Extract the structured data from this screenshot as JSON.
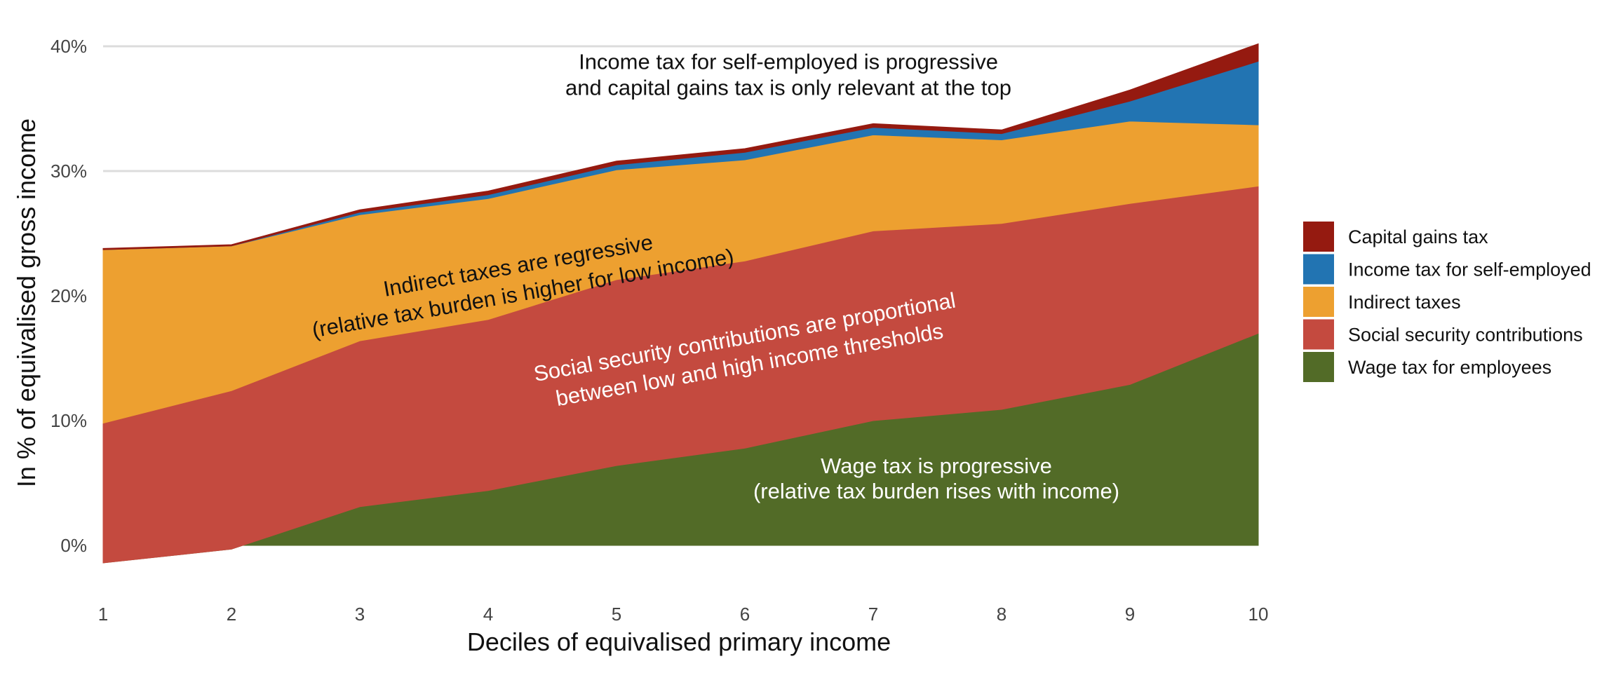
{
  "chart_data": {
    "type": "area",
    "stacked": true,
    "xlabel": "Deciles of equivalised primary income",
    "ylabel": "In % of equivalised gross income",
    "x": [
      1,
      2,
      3,
      4,
      5,
      6,
      7,
      8,
      9,
      10
    ],
    "ylim": [
      -2,
      40
    ],
    "yticks": [
      "0%",
      "10%",
      "20%",
      "30%",
      "40%"
    ],
    "ytick_values": [
      0,
      10,
      20,
      30,
      40
    ],
    "grid": true,
    "legend_position": "right",
    "series": [
      {
        "name": "Wage tax for employees",
        "color": "#526b27",
        "values": [
          -1.4,
          -0.3,
          3.1,
          4.4,
          6.4,
          7.8,
          10.0,
          10.9,
          12.9,
          17.0
        ]
      },
      {
        "name": "Social security contributions",
        "color": "#c44a3f",
        "values": [
          11.2,
          12.7,
          13.3,
          13.7,
          14.9,
          15.0,
          15.2,
          14.9,
          14.5,
          11.8
        ]
      },
      {
        "name": "Indirect taxes",
        "color": "#eda030",
        "values": [
          13.9,
          11.6,
          10.1,
          9.7,
          8.8,
          8.1,
          7.7,
          6.7,
          6.6,
          4.9
        ]
      },
      {
        "name": "Income tax for self-employed",
        "color": "#2274b2",
        "values": [
          0.0,
          0.0,
          0.2,
          0.3,
          0.4,
          0.6,
          0.6,
          0.5,
          1.6,
          5.1
        ]
      },
      {
        "name": "Capital gains tax",
        "color": "#951a10",
        "values": [
          0.1,
          0.1,
          0.2,
          0.3,
          0.3,
          0.3,
          0.3,
          0.3,
          0.9,
          1.4
        ]
      }
    ],
    "annotations": [
      {
        "lines": [
          "Income tax for self-employed is progressive",
          "and capital gains tax is only relevant at the top"
        ]
      },
      {
        "lines": [
          "Indirect taxes are regressive",
          "(relative tax burden is higher for low income)"
        ]
      },
      {
        "lines": [
          "Social security contributions are proportional",
          "between low and high income thresholds"
        ]
      },
      {
        "lines": [
          "Wage tax is progressive",
          "(relative tax burden rises with income)"
        ]
      }
    ]
  }
}
